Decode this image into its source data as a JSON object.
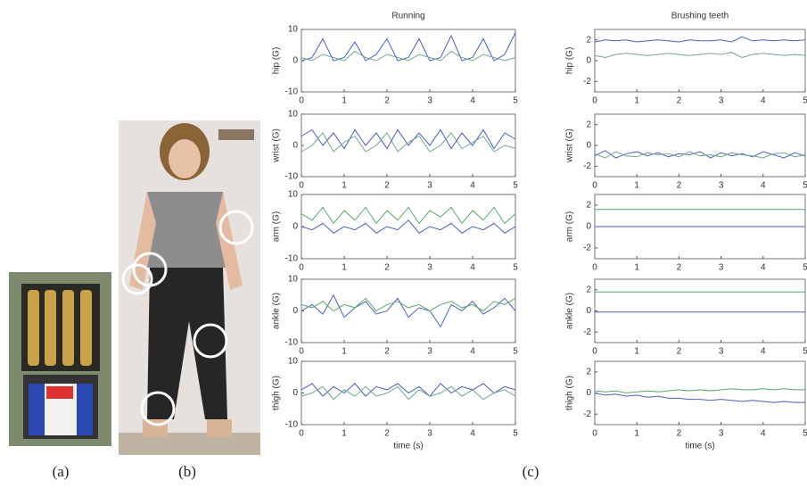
{
  "labels": [
    "(a)",
    "(b)",
    "(c)"
  ],
  "chart_data": [
    {
      "type": "line",
      "title": "Running",
      "ylabel": "hip (G)",
      "x": [
        0,
        0.25,
        0.5,
        0.75,
        1,
        1.25,
        1.5,
        1.75,
        2,
        2.25,
        2.5,
        2.75,
        3,
        3.25,
        3.5,
        3.75,
        4,
        4.25,
        4.5,
        4.75,
        5
      ],
      "xlim": [
        0,
        5
      ],
      "xticks": [
        0,
        1,
        2,
        3,
        4,
        5
      ],
      "ylim": [
        -10,
        10
      ],
      "yticks": [
        -10,
        0,
        10
      ],
      "series": [
        {
          "color": "#4a5fc8",
          "values": [
            0,
            1,
            7,
            0,
            1,
            6,
            0,
            2,
            7,
            0,
            1,
            7,
            0,
            1,
            8,
            0,
            1,
            7,
            0,
            2,
            9
          ]
        },
        {
          "color": "#6fa98a",
          "values": [
            1,
            0,
            2,
            1,
            0,
            3,
            1,
            0,
            2,
            1,
            0,
            2,
            1,
            0,
            3,
            1,
            0,
            2,
            1,
            0,
            1
          ]
        }
      ]
    },
    {
      "type": "line",
      "ylabel": "wrist (G)",
      "x": [
        0,
        0.25,
        0.5,
        0.75,
        1,
        1.25,
        1.5,
        1.75,
        2,
        2.25,
        2.5,
        2.75,
        3,
        3.25,
        3.5,
        3.75,
        4,
        4.25,
        4.5,
        4.75,
        5
      ],
      "xlim": [
        0,
        5
      ],
      "xticks": [
        0,
        1,
        2,
        3,
        4,
        5
      ],
      "ylim": [
        -10,
        10
      ],
      "yticks": [
        -10,
        0,
        10
      ],
      "series": [
        {
          "color": "#4a5fc8",
          "values": [
            3,
            5,
            0,
            4,
            -1,
            5,
            0,
            4,
            -1,
            5,
            0,
            4,
            0,
            5,
            -1,
            4,
            0,
            5,
            -1,
            4,
            2
          ]
        },
        {
          "color": "#6fa98a",
          "values": [
            -2,
            0,
            4,
            -2,
            1,
            3,
            -2,
            0,
            4,
            -2,
            1,
            3,
            -2,
            0,
            4,
            -1,
            1,
            3,
            -2,
            0,
            -1
          ]
        }
      ]
    },
    {
      "type": "line",
      "ylabel": "arm (G)",
      "x": [
        0,
        0.25,
        0.5,
        0.75,
        1,
        1.25,
        1.5,
        1.75,
        2,
        2.25,
        2.5,
        2.75,
        3,
        3.25,
        3.5,
        3.75,
        4,
        4.25,
        4.5,
        4.75,
        5
      ],
      "xlim": [
        0,
        5
      ],
      "xticks": [
        0,
        1,
        2,
        3,
        4,
        5
      ],
      "ylim": [
        -10,
        10
      ],
      "yticks": [
        -10,
        0,
        10
      ],
      "series": [
        {
          "color": "#4a5fc8",
          "values": [
            0,
            -1,
            1,
            -2,
            0,
            -1,
            1,
            -2,
            0,
            -1,
            2,
            -2,
            0,
            -1,
            1,
            -2,
            0,
            -1,
            1,
            -2,
            0
          ]
        },
        {
          "color": "#5aa86a",
          "values": [
            4,
            2,
            6,
            1,
            5,
            2,
            6,
            1,
            5,
            2,
            6,
            1,
            5,
            3,
            6,
            1,
            5,
            2,
            6,
            1,
            4
          ]
        }
      ]
    },
    {
      "type": "line",
      "ylabel": "ankle (G)",
      "x": [
        0,
        0.25,
        0.5,
        0.75,
        1,
        1.25,
        1.5,
        1.75,
        2,
        2.25,
        2.5,
        2.75,
        3,
        3.25,
        3.5,
        3.75,
        4,
        4.25,
        4.5,
        4.75,
        5
      ],
      "xlim": [
        0,
        5
      ],
      "xticks": [
        0,
        1,
        2,
        3,
        4,
        5
      ],
      "ylim": [
        -10,
        10
      ],
      "yticks": [
        -10,
        0,
        10
      ],
      "series": [
        {
          "color": "#4a5fc8",
          "values": [
            0,
            2,
            -1,
            5,
            -2,
            1,
            3,
            -1,
            0,
            4,
            -2,
            1,
            0,
            -5,
            2,
            0,
            3,
            -1,
            1,
            4,
            0
          ]
        },
        {
          "color": "#5aa86a",
          "values": [
            2,
            1,
            3,
            0,
            2,
            1,
            4,
            0,
            2,
            3,
            1,
            2,
            0,
            2,
            3,
            1,
            2,
            0,
            3,
            2,
            4
          ]
        }
      ]
    },
    {
      "type": "line",
      "ylabel": "thigh (G)",
      "xlabel": "time (s)",
      "x": [
        0,
        0.25,
        0.5,
        0.75,
        1,
        1.25,
        1.5,
        1.75,
        2,
        2.25,
        2.5,
        2.75,
        3,
        3.25,
        3.5,
        3.75,
        4,
        4.25,
        4.5,
        4.75,
        5
      ],
      "xlim": [
        0,
        5
      ],
      "xticks": [
        0,
        1,
        2,
        3,
        4,
        5
      ],
      "ylim": [
        -10,
        10
      ],
      "yticks": [
        -10,
        0,
        10
      ],
      "series": [
        {
          "color": "#4a5fc8",
          "values": [
            1,
            3,
            -1,
            2,
            0,
            3,
            -1,
            2,
            1,
            3,
            0,
            2,
            -1,
            3,
            0,
            2,
            1,
            3,
            0,
            2,
            1
          ]
        },
        {
          "color": "#6fa98a",
          "values": [
            -1,
            0,
            2,
            -2,
            1,
            -1,
            2,
            -1,
            0,
            2,
            -2,
            1,
            -1,
            0,
            2,
            -1,
            1,
            -2,
            0,
            1,
            -1
          ]
        }
      ]
    },
    {
      "type": "line",
      "title": "Brushing teeth",
      "ylabel": "hip (G)",
      "x": [
        0,
        0.25,
        0.5,
        0.75,
        1,
        1.25,
        1.5,
        1.75,
        2,
        2.25,
        2.5,
        2.75,
        3,
        3.25,
        3.5,
        3.75,
        4,
        4.25,
        4.5,
        4.75,
        5
      ],
      "xlim": [
        0,
        5
      ],
      "xticks": [
        0,
        1,
        2,
        3,
        4,
        5
      ],
      "ylim": [
        -3,
        3
      ],
      "yticks": [
        -2,
        0,
        2
      ],
      "series": [
        {
          "color": "#4a5fc8",
          "values": [
            1.8,
            2,
            1.9,
            2,
            1.8,
            1.9,
            2,
            1.9,
            1.8,
            2,
            1.9,
            1.9,
            2,
            1.8,
            2.3,
            1.9,
            2,
            1.9,
            2,
            1.9,
            2
          ]
        },
        {
          "color": "#6fa98a",
          "values": [
            0.5,
            0.3,
            0.6,
            0.7,
            0.6,
            0.5,
            0.6,
            0.7,
            0.6,
            0.5,
            0.6,
            0.7,
            0.6,
            0.8,
            0.3,
            0.6,
            0.7,
            0.6,
            0.5,
            0.6,
            0.5
          ]
        }
      ]
    },
    {
      "type": "line",
      "ylabel": "wrist (G)",
      "x": [
        0,
        0.25,
        0.5,
        0.75,
        1,
        1.25,
        1.5,
        1.75,
        2,
        2.25,
        2.5,
        2.75,
        3,
        3.25,
        3.5,
        3.75,
        4,
        4.25,
        4.5,
        4.75,
        5
      ],
      "xlim": [
        0,
        5
      ],
      "xticks": [
        0,
        1,
        2,
        3,
        4,
        5
      ],
      "ylim": [
        -3,
        3
      ],
      "yticks": [
        -2,
        0,
        2
      ],
      "series": [
        {
          "color": "#4a5fc8",
          "values": [
            -1,
            -0.5,
            -1.2,
            -0.8,
            -0.6,
            -1,
            -0.7,
            -1.1,
            -0.8,
            -0.9,
            -0.6,
            -1.2,
            -0.7,
            -1,
            -0.8,
            -1.1,
            -0.6,
            -0.9,
            -1.2,
            -0.7,
            -1
          ]
        },
        {
          "color": "#6fa98a",
          "values": [
            -0.8,
            -1.2,
            -0.6,
            -1,
            -1.1,
            -0.7,
            -0.9,
            -0.8,
            -1.1,
            -0.6,
            -1,
            -0.9,
            -1.1,
            -0.7,
            -0.9,
            -1,
            -1.2,
            -0.8,
            -0.7,
            -1.1,
            -0.9
          ]
        }
      ]
    },
    {
      "type": "line",
      "ylabel": "arm (G)",
      "x": [
        0,
        0.25,
        0.5,
        0.75,
        1,
        1.25,
        1.5,
        1.75,
        2,
        2.25,
        2.5,
        2.75,
        3,
        3.25,
        3.5,
        3.75,
        4,
        4.25,
        4.5,
        4.75,
        5
      ],
      "xlim": [
        0,
        5
      ],
      "xticks": [
        0,
        1,
        2,
        3,
        4,
        5
      ],
      "ylim": [
        -3,
        3
      ],
      "yticks": [
        -2,
        0,
        2
      ],
      "series": [
        {
          "color": "#5aa86a",
          "values": [
            1.6,
            1.6,
            1.6,
            1.6,
            1.6,
            1.6,
            1.6,
            1.6,
            1.6,
            1.6,
            1.6,
            1.6,
            1.6,
            1.6,
            1.6,
            1.6,
            1.6,
            1.6,
            1.6,
            1.6,
            1.6
          ]
        },
        {
          "color": "#4a5fc8",
          "values": [
            0,
            0,
            0,
            0,
            0,
            0,
            0,
            0,
            0,
            0,
            0,
            0,
            0,
            0,
            0,
            0,
            0,
            0,
            0,
            0,
            0
          ]
        }
      ]
    },
    {
      "type": "line",
      "ylabel": "ankle (G)",
      "x": [
        0,
        0.25,
        0.5,
        0.75,
        1,
        1.25,
        1.5,
        1.75,
        2,
        2.25,
        2.5,
        2.75,
        3,
        3.25,
        3.5,
        3.75,
        4,
        4.25,
        4.5,
        4.75,
        5
      ],
      "xlim": [
        0,
        5
      ],
      "xticks": [
        0,
        1,
        2,
        3,
        4,
        5
      ],
      "ylim": [
        -3,
        3
      ],
      "yticks": [
        -2,
        0,
        2
      ],
      "series": [
        {
          "color": "#5aa86a",
          "values": [
            1.8,
            1.8,
            1.8,
            1.8,
            1.8,
            1.8,
            1.8,
            1.8,
            1.8,
            1.8,
            1.8,
            1.8,
            1.8,
            1.8,
            1.8,
            1.8,
            1.8,
            1.8,
            1.8,
            1.8,
            1.8
          ]
        },
        {
          "color": "#4a5fc8",
          "values": [
            -0.1,
            -0.1,
            -0.1,
            -0.1,
            -0.1,
            -0.1,
            -0.1,
            -0.1,
            -0.1,
            -0.1,
            -0.1,
            -0.1,
            -0.1,
            -0.1,
            -0.1,
            -0.1,
            -0.1,
            -0.1,
            -0.1,
            -0.1,
            -0.1
          ]
        }
      ]
    },
    {
      "type": "line",
      "ylabel": "thigh (G)",
      "xlabel": "time (s)",
      "x": [
        0,
        0.25,
        0.5,
        0.75,
        1,
        1.25,
        1.5,
        1.75,
        2,
        2.25,
        2.5,
        2.75,
        3,
        3.25,
        3.5,
        3.75,
        4,
        4.25,
        4.5,
        4.75,
        5
      ],
      "xlim": [
        0,
        5
      ],
      "xticks": [
        0,
        1,
        2,
        3,
        4,
        5
      ],
      "ylim": [
        -3,
        3
      ],
      "yticks": [
        -2,
        0,
        2
      ],
      "series": [
        {
          "color": "#5aa86a",
          "values": [
            0.2,
            0.1,
            0.2,
            0,
            0.1,
            0.2,
            0.1,
            0.2,
            0.3,
            0.2,
            0.3,
            0.2,
            0.3,
            0.4,
            0.3,
            0.3,
            0.4,
            0.3,
            0.4,
            0.3,
            0.3
          ]
        },
        {
          "color": "#4a5fc8",
          "values": [
            0,
            -0.2,
            -0.1,
            -0.3,
            -0.2,
            -0.4,
            -0.3,
            -0.5,
            -0.5,
            -0.6,
            -0.6,
            -0.7,
            -0.6,
            -0.7,
            -0.8,
            -0.7,
            -0.8,
            -0.9,
            -0.8,
            -0.9,
            -0.9
          ]
        }
      ]
    }
  ]
}
